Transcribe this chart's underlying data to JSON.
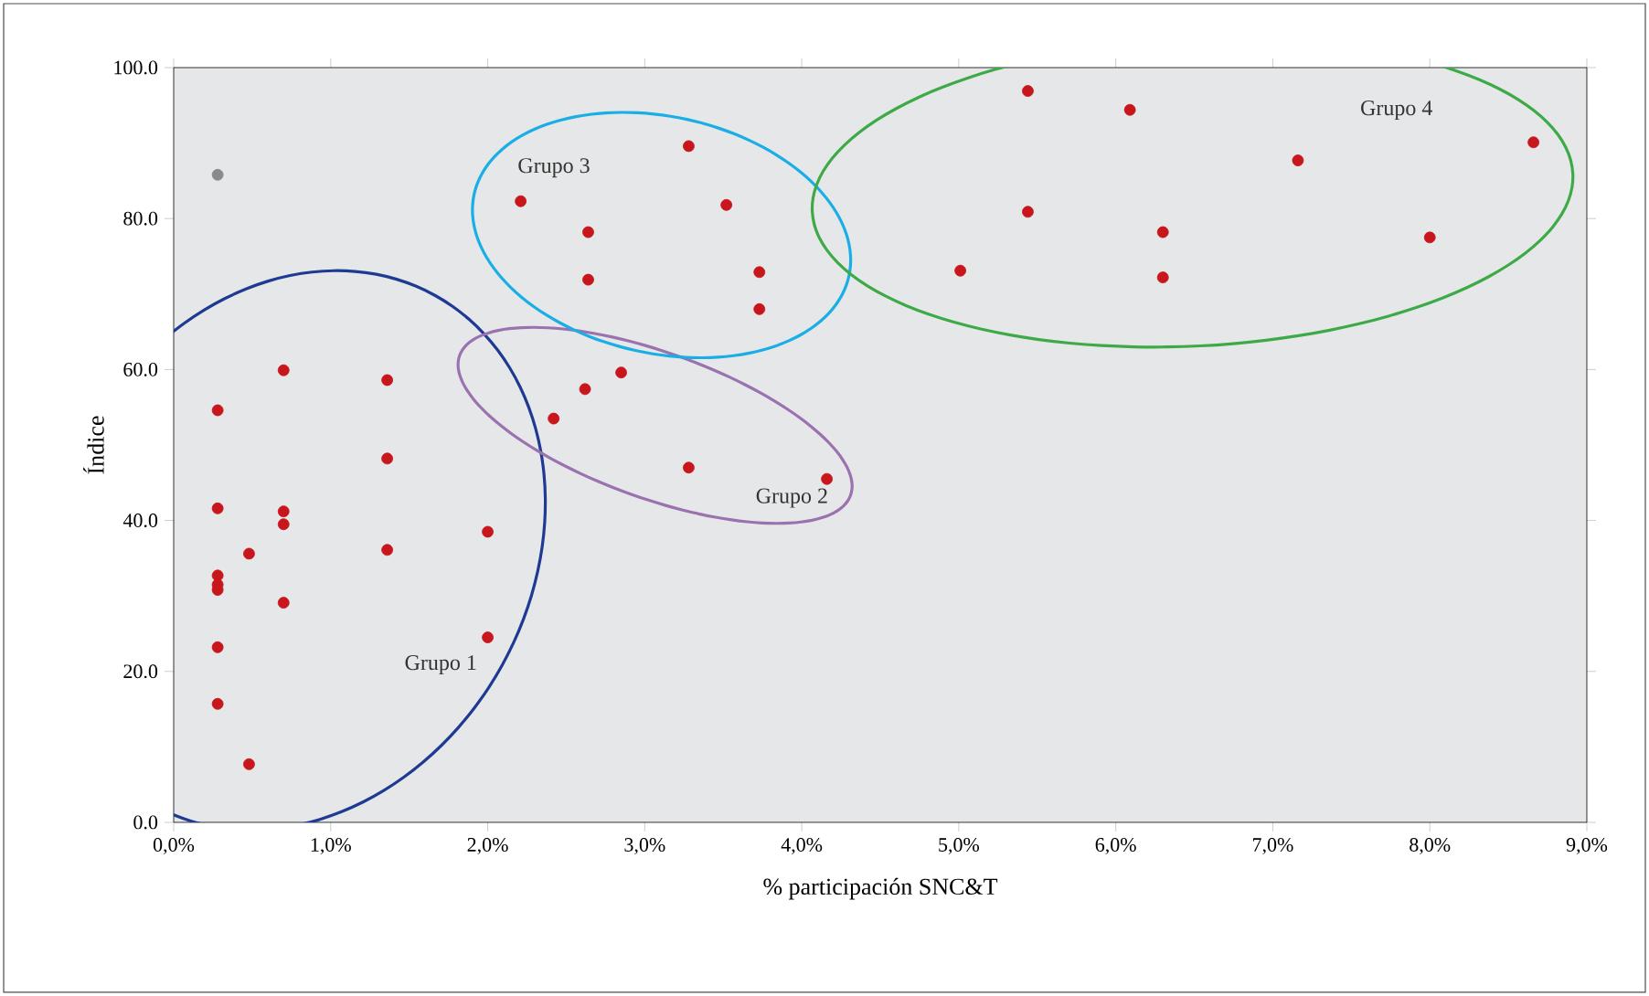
{
  "chart_data": {
    "type": "scatter",
    "xlabel": "% participación SNC&T",
    "ylabel": "Índice",
    "xlim": [
      0,
      9
    ],
    "ylim": [
      0,
      100
    ],
    "xticks": [
      {
        "value": 0,
        "label": "0,0%"
      },
      {
        "value": 1,
        "label": "1,0%"
      },
      {
        "value": 2,
        "label": "2,0%"
      },
      {
        "value": 3,
        "label": "3,0%"
      },
      {
        "value": 4,
        "label": "4,0%"
      },
      {
        "value": 5,
        "label": "5,0%"
      },
      {
        "value": 6,
        "label": "6,0%"
      },
      {
        "value": 7,
        "label": "7,0%"
      },
      {
        "value": 8,
        "label": "8,0%"
      },
      {
        "value": 9,
        "label": "9,0%"
      }
    ],
    "yticks": [
      {
        "value": 0,
        "label": "0.0"
      },
      {
        "value": 20,
        "label": "20.0"
      },
      {
        "value": 40,
        "label": "40.0"
      },
      {
        "value": 60,
        "label": "60.0"
      },
      {
        "value": 80,
        "label": "80.0"
      },
      {
        "value": 100,
        "label": "100.0"
      }
    ],
    "marker": "circle",
    "annotations": [
      "Grupo 1",
      "Grupo 2",
      "Grupo 3",
      "Grupo 4"
    ],
    "series": [
      {
        "color": "#c8161d",
        "x": [
          0.28,
          0.7,
          1.36,
          1.36,
          0.28,
          0.7,
          0.7,
          0.48,
          1.36,
          2.0,
          0.28,
          0.28,
          0.28,
          0.7,
          0.28,
          2.0,
          0.28,
          0.48
        ],
        "values": [
          54.6,
          59.9,
          58.6,
          48.2,
          41.6,
          41.2,
          39.5,
          35.6,
          36.1,
          38.5,
          32.7,
          31.5,
          30.8,
          29.1,
          23.2,
          24.5,
          15.7,
          7.7
        ]
      },
      {
        "color": "#c8161d",
        "x": [
          2.42,
          2.62,
          2.85,
          3.28,
          4.16
        ],
        "values": [
          53.5,
          57.4,
          59.6,
          47.0,
          45.5
        ]
      },
      {
        "color": "#c8161d",
        "x": [
          2.21,
          2.64,
          2.64,
          3.28,
          3.52,
          3.73,
          3.73
        ],
        "values": [
          82.3,
          78.2,
          71.9,
          89.6,
          81.8,
          72.9,
          68.0
        ]
      },
      {
        "color": "#c8161d",
        "x": [
          5.01,
          5.44,
          5.44,
          6.09,
          6.3,
          6.3,
          7.16,
          8.0,
          8.66
        ],
        "values": [
          73.1,
          96.9,
          80.9,
          94.4,
          78.2,
          72.2,
          87.7,
          77.5,
          90.1
        ]
      },
      {
        "color": "#8a8a8a",
        "x": [
          0.28
        ],
        "values": [
          85.8
        ]
      }
    ]
  }
}
